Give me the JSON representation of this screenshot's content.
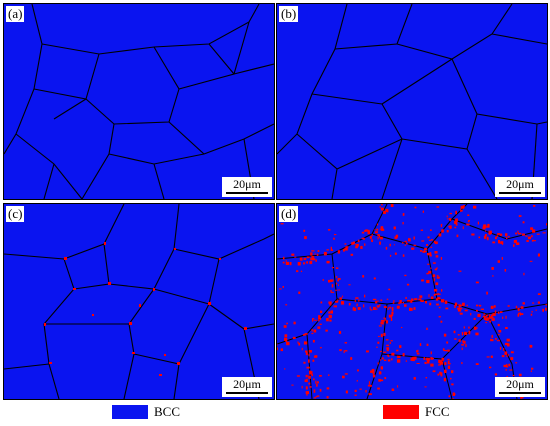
{
  "colors": {
    "bcc": "#0a14f0",
    "fcc": "#ff0000",
    "boundary": "#000000"
  },
  "panels": [
    {
      "label": "(a)",
      "scale_text": "20μm"
    },
    {
      "label": "(b)",
      "scale_text": "20μm"
    },
    {
      "label": "(c)",
      "scale_text": "20μm"
    },
    {
      "label": "(d)",
      "scale_text": "20μm"
    }
  ],
  "legend": {
    "bcc_label": "BCC",
    "fcc_label": "FCC"
  }
}
